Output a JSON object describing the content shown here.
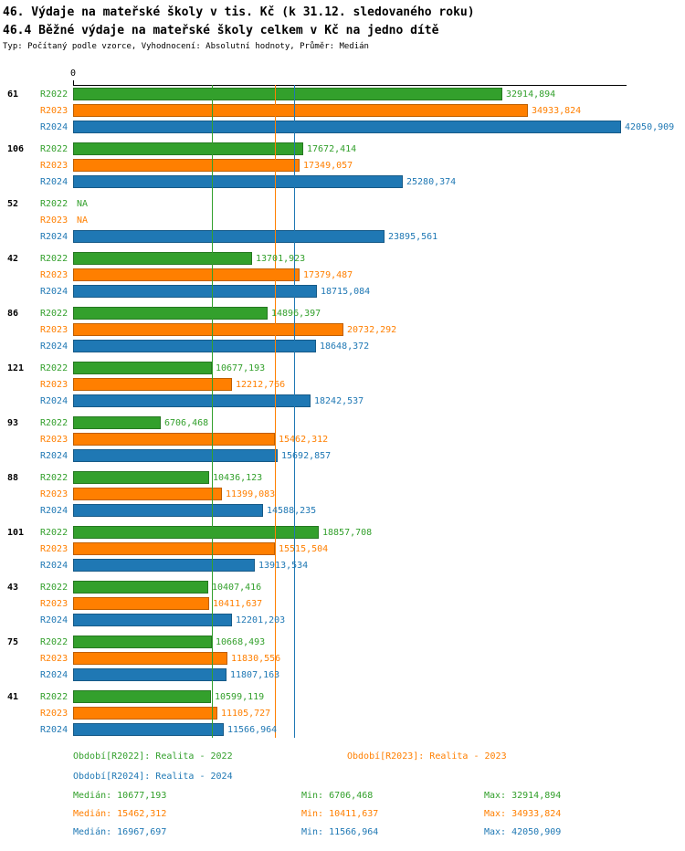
{
  "title": "46. Výdaje na mateřské školy v tis. Kč (k 31.12. sledovaného roku)",
  "subtitle": "46.4 Běžné výdaje na mateřské školy celkem v Kč na jedno dítě",
  "meta": "Typ: Počítaný podle vzorce, Vyhodnocení: Absolutní hodnoty, Průměr: Medián",
  "axis": {
    "zero_label": "0"
  },
  "colors": {
    "R2022": "#33a02c",
    "R2023": "#ff7f00",
    "R2024": "#1f78b4"
  },
  "chart_data": {
    "type": "bar",
    "orientation": "horizontal",
    "title": "46. Výdaje na mateřské školy v tis. Kč (k 31.12. sledovaného roku)",
    "subtitle": "46.4 Běžné výdaje na mateřské školy celkem v Kč na jedno dítě",
    "x_axis_min": 0,
    "x_axis_max": 42050.909,
    "series_names": [
      "R2022",
      "R2023",
      "R2024"
    ],
    "groups": [
      {
        "label": "61",
        "values": [
          32914.894,
          34933.824,
          42050.909
        ],
        "display": [
          "32914,894",
          "34933,824",
          "42050,909"
        ]
      },
      {
        "label": "106",
        "values": [
          17672.414,
          17349.057,
          25280.374
        ],
        "display": [
          "17672,414",
          "17349,057",
          "25280,374"
        ]
      },
      {
        "label": "52",
        "values": [
          null,
          null,
          23895.561
        ],
        "display": [
          "NA",
          "NA",
          "23895,561"
        ]
      },
      {
        "label": "42",
        "values": [
          13701.923,
          17379.487,
          18715.084
        ],
        "display": [
          "13701,923",
          "17379,487",
          "18715,084"
        ]
      },
      {
        "label": "86",
        "values": [
          14896.397,
          20732.292,
          18648.372
        ],
        "display": [
          "14896,397",
          "20732,292",
          "18648,372"
        ]
      },
      {
        "label": "121",
        "values": [
          10677.193,
          12212.766,
          18242.537
        ],
        "display": [
          "10677,193",
          "12212,766",
          "18242,537"
        ]
      },
      {
        "label": "93",
        "values": [
          6706.468,
          15462.312,
          15692.857
        ],
        "display": [
          "6706,468",
          "15462,312",
          "15692,857"
        ]
      },
      {
        "label": "88",
        "values": [
          10436.123,
          11399.083,
          14588.235
        ],
        "display": [
          "10436,123",
          "11399,083",
          "14588,235"
        ]
      },
      {
        "label": "101",
        "values": [
          18857.708,
          15515.504,
          13913.534
        ],
        "display": [
          "18857,708",
          "15515,504",
          "13913,534"
        ]
      },
      {
        "label": "43",
        "values": [
          10407.416,
          10411.637,
          12201.203
        ],
        "display": [
          "10407,416",
          "10411,637",
          "12201,203"
        ]
      },
      {
        "label": "75",
        "values": [
          10668.493,
          11830.556,
          11807.163
        ],
        "display": [
          "10668,493",
          "11830,556",
          "11807,163"
        ]
      },
      {
        "label": "41",
        "values": [
          10599.119,
          11105.727,
          11566.964
        ],
        "display": [
          "10599,119",
          "11105,727",
          "11566,964"
        ]
      }
    ],
    "median_lines": [
      {
        "series": "R2022",
        "value": 10677.193
      },
      {
        "series": "R2023",
        "value": 15462.312
      },
      {
        "series": "R2024",
        "value": 16967.697
      }
    ]
  },
  "legend": {
    "r2022": "Období[R2022]: Realita - 2022",
    "r2023": "Období[R2023]: Realita - 2023",
    "r2024": "Období[R2024]: Realita - 2024"
  },
  "stats": {
    "r2022": {
      "median": "Medián: 10677,193",
      "min": "Min: 6706,468",
      "max": "Max: 32914,894"
    },
    "r2023": {
      "median": "Medián: 15462,312",
      "min": "Min: 10411,637",
      "max": "Max: 34933,824"
    },
    "r2024": {
      "median": "Medián: 16967,697",
      "min": "Min: 11566,964",
      "max": "Max: 42050,909"
    }
  }
}
